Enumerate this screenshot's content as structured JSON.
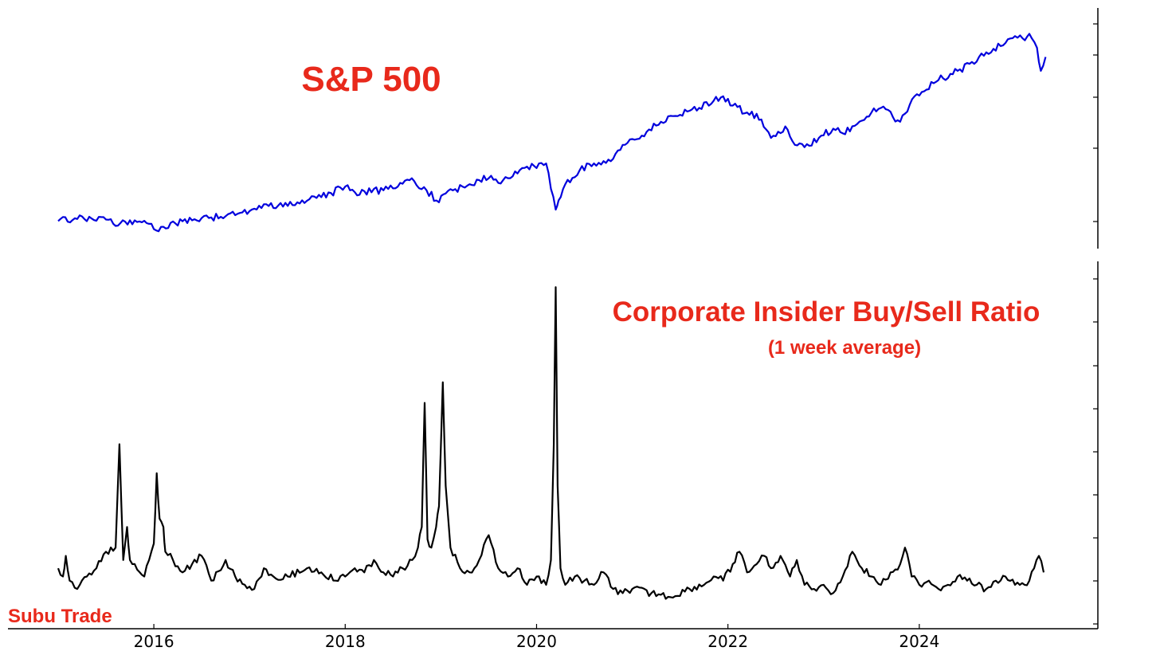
{
  "chart_data": [
    {
      "type": "line",
      "title": "S&P 500",
      "color": "#0000dd",
      "xlabel": "",
      "ylabel": "",
      "xlim": [
        2015.0,
        2025.35
      ],
      "ylim": [
        1700,
        6400
      ],
      "grid": false,
      "x": [
        2015.0,
        2015.2,
        2015.35,
        2015.55,
        2015.6,
        2015.65,
        2015.8,
        2015.9,
        2016.0,
        2016.1,
        2016.3,
        2016.5,
        2016.75,
        2016.9,
        2017.0,
        2017.2,
        2017.5,
        2017.75,
        2018.0,
        2018.05,
        2018.1,
        2018.2,
        2018.4,
        2018.6,
        2018.72,
        2018.85,
        2018.98,
        2019.05,
        2019.3,
        2019.4,
        2019.5,
        2019.6,
        2019.75,
        2019.9,
        2020.1,
        2020.15,
        2020.2,
        2020.23,
        2020.3,
        2020.45,
        2020.6,
        2020.7,
        2020.8,
        2020.9,
        2021.1,
        2021.3,
        2021.5,
        2021.7,
        2021.85,
        2021.95,
        2022.05,
        2022.2,
        2022.35,
        2022.45,
        2022.6,
        2022.7,
        2022.8,
        2022.95,
        2023.1,
        2023.2,
        2023.35,
        2023.5,
        2023.6,
        2023.8,
        2023.95,
        2024.2,
        2024.4,
        2024.6,
        2024.7,
        2024.9,
        2025.0,
        2025.08,
        2025.15,
        2025.23,
        2025.27,
        2025.32
      ],
      "values": [
        2055,
        2100,
        2110,
        2095,
        1950,
        2010,
        2070,
        2060,
        1880,
        1930,
        2050,
        2120,
        2160,
        2230,
        2270,
        2380,
        2460,
        2570,
        2800,
        2720,
        2680,
        2700,
        2720,
        2860,
        2920,
        2720,
        2460,
        2650,
        2850,
        2940,
        2980,
        2880,
        3020,
        3230,
        3300,
        2750,
        2300,
        2500,
        2850,
        3150,
        3300,
        3350,
        3400,
        3700,
        3900,
        4200,
        4350,
        4500,
        4650,
        4750,
        4550,
        4400,
        4250,
        3850,
        4100,
        3700,
        3650,
        3850,
        4050,
        3950,
        4150,
        4400,
        4500,
        4200,
        4750,
        5100,
        5300,
        5500,
        5700,
        5900,
        6050,
        6000,
        6100,
        5800,
        5300,
        5600
      ]
    },
    {
      "type": "line",
      "title": "Corporate Insider Buy/Sell Ratio",
      "subtitle": "(1 week average)",
      "color": "#000000",
      "xlabel": "",
      "ylabel": "",
      "xlim": [
        2015.0,
        2025.35
      ],
      "ylim": [
        0,
        0.8
      ],
      "xticks": [
        "2016",
        "2018",
        "2020",
        "2022",
        "2024"
      ],
      "grid": false,
      "x": [
        2015.0,
        2015.05,
        2015.08,
        2015.12,
        2015.2,
        2015.3,
        2015.4,
        2015.5,
        2015.6,
        2015.64,
        2015.68,
        2015.72,
        2015.75,
        2015.8,
        2015.9,
        2015.95,
        2016.0,
        2016.03,
        2016.06,
        2016.1,
        2016.12,
        2016.2,
        2016.3,
        2016.4,
        2016.5,
        2016.6,
        2016.75,
        2016.85,
        2016.95,
        2017.05,
        2017.15,
        2017.25,
        2017.4,
        2017.6,
        2017.75,
        2017.9,
        2018.0,
        2018.1,
        2018.2,
        2018.3,
        2018.4,
        2018.5,
        2018.6,
        2018.7,
        2018.76,
        2018.8,
        2018.83,
        2018.86,
        2018.9,
        2018.95,
        2018.98,
        2019.02,
        2019.05,
        2019.1,
        2019.2,
        2019.3,
        2019.4,
        2019.5,
        2019.6,
        2019.7,
        2019.8,
        2019.9,
        2020.0,
        2020.1,
        2020.15,
        2020.18,
        2020.2,
        2020.22,
        2020.25,
        2020.3,
        2020.4,
        2020.5,
        2020.6,
        2020.7,
        2020.8,
        2020.9,
        2021.0,
        2021.2,
        2021.4,
        2021.6,
        2021.75,
        2021.85,
        2021.95,
        2022.05,
        2022.12,
        2022.2,
        2022.3,
        2022.38,
        2022.45,
        2022.55,
        2022.65,
        2022.72,
        2022.8,
        2022.9,
        2023.0,
        2023.1,
        2023.2,
        2023.3,
        2023.4,
        2023.5,
        2023.6,
        2023.7,
        2023.8,
        2023.85,
        2023.92,
        2024.0,
        2024.1,
        2024.2,
        2024.3,
        2024.4,
        2024.5,
        2024.6,
        2024.7,
        2024.8,
        2024.9,
        2025.0,
        2025.1,
        2025.15,
        2025.2,
        2025.25,
        2025.3
      ],
      "values": [
        0.1,
        0.08,
        0.13,
        0.07,
        0.05,
        0.08,
        0.1,
        0.14,
        0.15,
        0.4,
        0.12,
        0.2,
        0.12,
        0.11,
        0.08,
        0.12,
        0.16,
        0.33,
        0.22,
        0.2,
        0.14,
        0.12,
        0.09,
        0.11,
        0.13,
        0.07,
        0.12,
        0.08,
        0.06,
        0.05,
        0.1,
        0.08,
        0.08,
        0.1,
        0.09,
        0.07,
        0.08,
        0.1,
        0.09,
        0.12,
        0.09,
        0.08,
        0.1,
        0.12,
        0.15,
        0.2,
        0.5,
        0.17,
        0.15,
        0.2,
        0.25,
        0.55,
        0.3,
        0.15,
        0.1,
        0.09,
        0.12,
        0.18,
        0.1,
        0.08,
        0.1,
        0.06,
        0.08,
        0.06,
        0.12,
        0.4,
        0.78,
        0.3,
        0.1,
        0.06,
        0.08,
        0.07,
        0.06,
        0.09,
        0.05,
        0.04,
        0.05,
        0.04,
        0.03,
        0.05,
        0.06,
        0.08,
        0.07,
        0.11,
        0.14,
        0.09,
        0.11,
        0.13,
        0.1,
        0.13,
        0.08,
        0.12,
        0.06,
        0.05,
        0.06,
        0.04,
        0.08,
        0.14,
        0.1,
        0.08,
        0.06,
        0.09,
        0.11,
        0.15,
        0.08,
        0.06,
        0.07,
        0.05,
        0.06,
        0.08,
        0.07,
        0.06,
        0.05,
        0.07,
        0.08,
        0.06,
        0.06,
        0.07,
        0.1,
        0.13,
        0.09
      ]
    }
  ],
  "watermark": "Subu Trade"
}
